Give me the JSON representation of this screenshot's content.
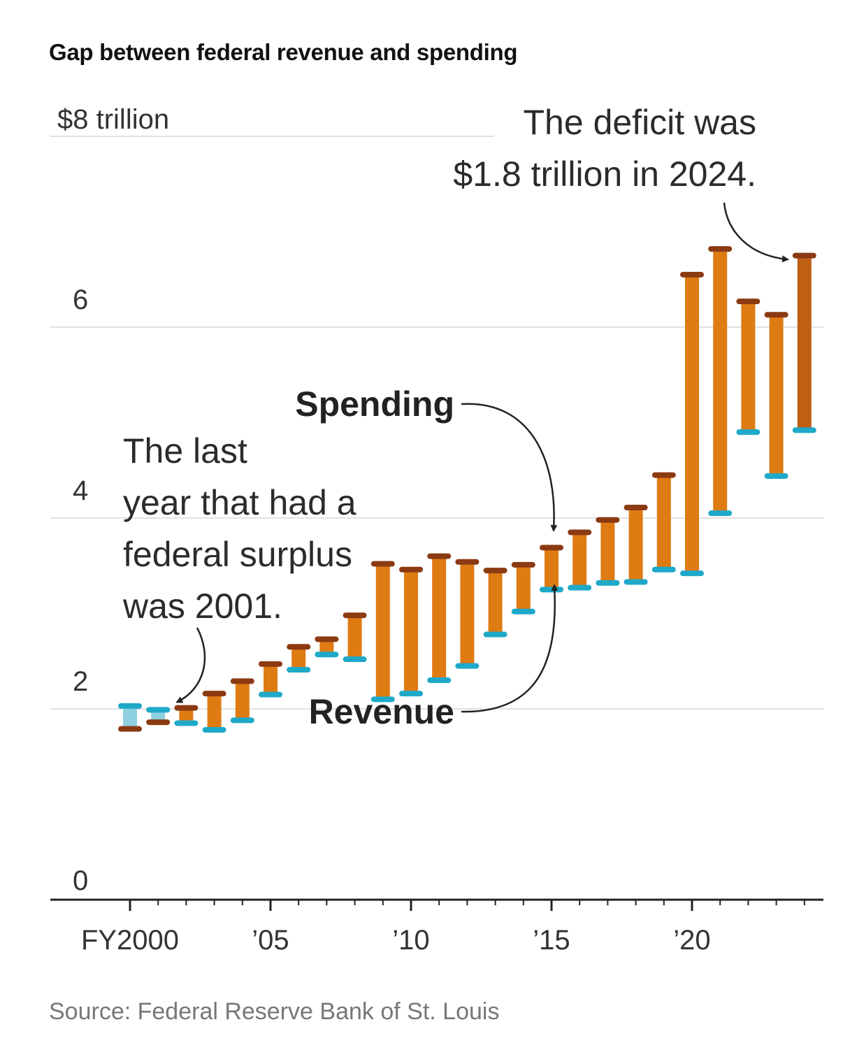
{
  "chart_data": {
    "type": "range-bar",
    "title": "Gap between federal revenue and spending",
    "unit_label": "$8 trillion",
    "ylim": [
      0,
      8
    ],
    "y_ticks": [
      {
        "value": 0,
        "label": "0"
      },
      {
        "value": 2,
        "label": "2"
      },
      {
        "value": 4,
        "label": "4"
      },
      {
        "value": 6,
        "label": "6"
      },
      {
        "value": 8,
        "label": "$8 trillion"
      }
    ],
    "x_ticks": [
      {
        "year": 2000,
        "label": "FY2000"
      },
      {
        "year": 2005,
        "label": "’05"
      },
      {
        "year": 2010,
        "label": "’10"
      },
      {
        "year": 2015,
        "label": "’15"
      },
      {
        "year": 2020,
        "label": "’20"
      }
    ],
    "series": [
      {
        "name": "Spending",
        "color": "#8b3a12"
      },
      {
        "name": "Revenue",
        "color": "#1fa9c9"
      }
    ],
    "bars": [
      {
        "year": 2000,
        "spending": 1.79,
        "revenue": 2.03
      },
      {
        "year": 2001,
        "spending": 1.86,
        "revenue": 1.99
      },
      {
        "year": 2002,
        "spending": 2.01,
        "revenue": 1.85
      },
      {
        "year": 2003,
        "spending": 2.16,
        "revenue": 1.78
      },
      {
        "year": 2004,
        "spending": 2.29,
        "revenue": 1.88
      },
      {
        "year": 2005,
        "spending": 2.47,
        "revenue": 2.15
      },
      {
        "year": 2006,
        "spending": 2.65,
        "revenue": 2.41
      },
      {
        "year": 2007,
        "spending": 2.73,
        "revenue": 2.57
      },
      {
        "year": 2008,
        "spending": 2.98,
        "revenue": 2.52
      },
      {
        "year": 2009,
        "spending": 3.52,
        "revenue": 2.1
      },
      {
        "year": 2010,
        "spending": 3.46,
        "revenue": 2.16
      },
      {
        "year": 2011,
        "spending": 3.6,
        "revenue": 2.3
      },
      {
        "year": 2012,
        "spending": 3.54,
        "revenue": 2.45
      },
      {
        "year": 2013,
        "spending": 3.45,
        "revenue": 2.78
      },
      {
        "year": 2014,
        "spending": 3.51,
        "revenue": 3.02
      },
      {
        "year": 2015,
        "spending": 3.69,
        "revenue": 3.25
      },
      {
        "year": 2016,
        "spending": 3.85,
        "revenue": 3.27
      },
      {
        "year": 2017,
        "spending": 3.98,
        "revenue": 3.32
      },
      {
        "year": 2018,
        "spending": 4.11,
        "revenue": 3.33
      },
      {
        "year": 2019,
        "spending": 4.45,
        "revenue": 3.46
      },
      {
        "year": 2020,
        "spending": 6.55,
        "revenue": 3.42
      },
      {
        "year": 2021,
        "spending": 6.82,
        "revenue": 4.05
      },
      {
        "year": 2022,
        "spending": 6.27,
        "revenue": 4.9
      },
      {
        "year": 2023,
        "spending": 6.13,
        "revenue": 4.44
      },
      {
        "year": 2024,
        "spending": 6.75,
        "revenue": 4.92
      }
    ],
    "annotations": {
      "deficit_note": [
        "The deficit was",
        "$1.8 trillion in 2024."
      ],
      "surplus_note": [
        "The last",
        "year that had a",
        "federal surplus",
        "was 2001."
      ],
      "spending_label": "Spending",
      "revenue_label": "Revenue"
    },
    "grid": true
  },
  "source": "Source: Federal Reserve Bank of St. Louis"
}
